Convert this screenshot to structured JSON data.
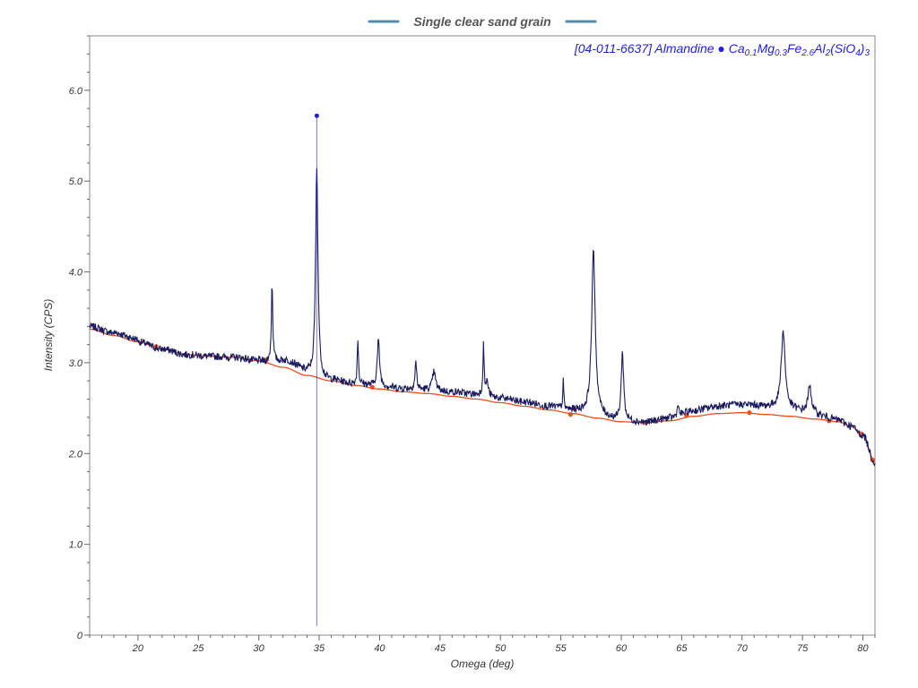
{
  "chart_data": {
    "type": "line",
    "title": "Single clear sand grain",
    "xlabel": "Omega (deg)",
    "ylabel": "Intensity (CPS)",
    "xlim": [
      16,
      81
    ],
    "ylim": [
      0,
      6.6
    ],
    "x_ticks": [
      20,
      25,
      30,
      35,
      40,
      45,
      50,
      55,
      60,
      65,
      70,
      75,
      80
    ],
    "y_ticks": [
      0,
      1.0,
      2.0,
      3.0,
      4.0,
      5.0,
      6.0
    ],
    "y_tick_labels": [
      "0",
      "1.0",
      "2.0",
      "3.0",
      "4.0",
      "5.0",
      "6.0"
    ],
    "grid": false,
    "phase_label": {
      "prefix": "[04-011-6637] Almandine ● ",
      "formula": [
        {
          "t": "Ca",
          "sub": false
        },
        {
          "t": "0.1",
          "sub": true
        },
        {
          "t": "Mg",
          "sub": false
        },
        {
          "t": "0.3",
          "sub": true
        },
        {
          "t": "Fe",
          "sub": false
        },
        {
          "t": "2.6",
          "sub": true
        },
        {
          "t": "Al",
          "sub": false
        },
        {
          "t": "2",
          "sub": true
        },
        {
          "t": "(SiO",
          "sub": false
        },
        {
          "t": "4",
          "sub": true
        },
        {
          "t": ")",
          "sub": false
        },
        {
          "t": "3",
          "sub": true
        }
      ]
    },
    "colors": {
      "pattern": "#1a1a5e",
      "background": "#e8501e",
      "phase_marker": "#1f1fe0",
      "title_accent": "#2a6f97"
    },
    "background_points": [
      [
        16,
        3.37
      ],
      [
        18,
        3.3
      ],
      [
        20,
        3.23
      ],
      [
        22,
        3.15
      ],
      [
        24,
        3.09
      ],
      [
        26,
        3.07
      ],
      [
        28,
        3.06
      ],
      [
        30,
        3.02
      ],
      [
        32,
        2.95
      ],
      [
        34,
        2.86
      ],
      [
        36,
        2.8
      ],
      [
        38,
        2.75
      ],
      [
        40,
        2.71
      ],
      [
        42,
        2.68
      ],
      [
        44,
        2.66
      ],
      [
        46,
        2.63
      ],
      [
        48,
        2.6
      ],
      [
        50,
        2.56
      ],
      [
        52,
        2.52
      ],
      [
        54,
        2.48
      ],
      [
        56,
        2.44
      ],
      [
        58,
        2.39
      ],
      [
        60,
        2.35
      ],
      [
        62,
        2.34
      ],
      [
        64,
        2.36
      ],
      [
        66,
        2.41
      ],
      [
        68,
        2.44
      ],
      [
        70,
        2.45
      ],
      [
        72,
        2.43
      ],
      [
        74,
        2.41
      ],
      [
        76,
        2.38
      ],
      [
        78,
        2.35
      ],
      [
        79,
        2.3
      ],
      [
        80,
        2.2
      ],
      [
        81,
        1.9
      ]
    ],
    "background_markers": [
      [
        21.5,
        3.18
      ],
      [
        30.6,
        3.03
      ],
      [
        39.4,
        2.73
      ],
      [
        55.8,
        2.43
      ],
      [
        62.0,
        2.34
      ],
      [
        65.4,
        2.42
      ],
      [
        70.6,
        2.45
      ],
      [
        77.2,
        2.36
      ],
      [
        79.8,
        2.22
      ],
      [
        80.8,
        1.93
      ]
    ],
    "pattern_peaks": [
      {
        "x": 31.1,
        "h": 0.85,
        "w": 0.07
      },
      {
        "x": 34.8,
        "h": 2.3,
        "w": 0.12
      },
      {
        "x": 38.2,
        "h": 0.5,
        "w": 0.06
      },
      {
        "x": 39.9,
        "h": 0.5,
        "w": 0.12
      },
      {
        "x": 43.0,
        "h": 0.3,
        "w": 0.08
      },
      {
        "x": 44.5,
        "h": 0.2,
        "w": 0.15
      },
      {
        "x": 48.6,
        "h": 0.55,
        "w": 0.06
      },
      {
        "x": 48.9,
        "h": 0.15,
        "w": 0.12
      },
      {
        "x": 55.2,
        "h": 0.3,
        "w": 0.05
      },
      {
        "x": 57.7,
        "h": 1.8,
        "w": 0.18
      },
      {
        "x": 60.1,
        "h": 0.75,
        "w": 0.12
      },
      {
        "x": 64.7,
        "h": 0.15,
        "w": 0.06
      },
      {
        "x": 73.4,
        "h": 0.85,
        "w": 0.2
      },
      {
        "x": 75.6,
        "h": 0.3,
        "w": 0.18
      }
    ],
    "phase_sticks": [
      {
        "x": 34.8,
        "y": 5.72
      }
    ]
  }
}
